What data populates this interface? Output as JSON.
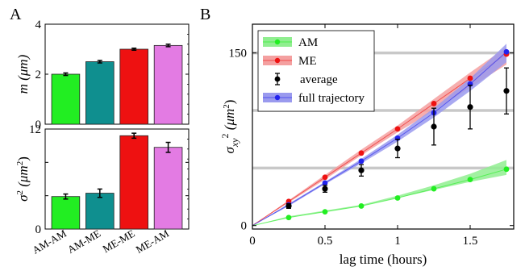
{
  "panel_labels": {
    "a": "A",
    "b": "B"
  },
  "chart_data": [
    {
      "id": "A-top",
      "type": "bar",
      "categories": [
        "AM-AM",
        "AM-ME",
        "ME-ME",
        "ME-AM"
      ],
      "values": [
        2.0,
        2.5,
        3.0,
        3.15
      ],
      "errors": [
        0.05,
        0.05,
        0.04,
        0.05
      ],
      "colors": [
        "#22ee22",
        "#0f8f8f",
        "#ee1111",
        "#e37be3"
      ],
      "ylabel_var": "m",
      "ylabel_unit": "(μm)",
      "ylim": [
        0,
        4
      ],
      "yticks": [
        0,
        2,
        4
      ],
      "show_x_labels": false
    },
    {
      "id": "A-bottom",
      "type": "bar",
      "categories": [
        "AM-AM",
        "AM-ME",
        "ME-ME",
        "ME-AM"
      ],
      "values": [
        3.9,
        4.3,
        11.2,
        9.8
      ],
      "errors": [
        0.3,
        0.5,
        0.3,
        0.6
      ],
      "colors": [
        "#22ee22",
        "#0f8f8f",
        "#ee1111",
        "#e37be3"
      ],
      "ylabel_var": "σ",
      "ylabel_sup": "2",
      "ylabel_unit": "(μm",
      "ylabel_unit_sup": "2",
      "ylabel_close": ")",
      "ylim": [
        0,
        12
      ],
      "yticks": [
        0,
        4,
        8,
        12
      ],
      "ytick_labels": [
        "0",
        "",
        "",
        "12"
      ],
      "show_x_labels": true
    },
    {
      "id": "B",
      "type": "line",
      "xlabel": "lag time (hours)",
      "ylabel_var": "σ",
      "ylabel_sub": "xy",
      "ylabel_sup": "2",
      "ylabel_unit": "(μm",
      "ylabel_unit_sup": "2",
      "ylabel_close": ")",
      "xlim": [
        0,
        1.8
      ],
      "ylim": [
        -3,
        175
      ],
      "xticks": [
        0,
        0.5,
        1,
        1.5
      ],
      "xtick_labels": [
        "0",
        "0.5",
        "1",
        "1.5"
      ],
      "yticks": [
        0,
        150
      ],
      "ytick_labels": [
        "0",
        "150"
      ],
      "gridlines_y": [
        50,
        100,
        150
      ],
      "legend_position": "top-left",
      "series": [
        {
          "name": "AM",
          "color": "#22ee22",
          "band": "#90ee90",
          "x": [
            0.25,
            0.5,
            0.75,
            1.0,
            1.25,
            1.5,
            1.75
          ],
          "y": [
            7,
            12,
            17,
            24,
            32,
            40,
            49
          ],
          "lower": [
            7,
            12,
            17,
            24,
            31,
            38,
            44
          ],
          "upper": [
            8,
            13,
            18,
            26,
            35,
            45,
            57
          ]
        },
        {
          "name": "ME",
          "color": "#ee1111",
          "band": "#f4a0a0",
          "x": [
            0.25,
            0.5,
            0.75,
            1.0,
            1.25,
            1.5,
            1.75
          ],
          "y": [
            21,
            42,
            63,
            84,
            106,
            128,
            149
          ],
          "lower": [
            20,
            40,
            61,
            81,
            100,
            120,
            140
          ],
          "upper": [
            22,
            44,
            66,
            87,
            110,
            133,
            155
          ]
        },
        {
          "name": "average",
          "color": "#000000",
          "type": "errorbar",
          "x": [
            0.25,
            0.5,
            0.75,
            1.0,
            1.25,
            1.5,
            1.75
          ],
          "y": [
            17,
            32,
            48,
            67,
            86,
            103,
            117
          ],
          "err": [
            2,
            3,
            5,
            8,
            16,
            19,
            20
          ]
        },
        {
          "name": "full trajectory",
          "color": "#2222ee",
          "band": "#9a9aee",
          "x": [
            0.25,
            0.5,
            0.75,
            1.0,
            1.25,
            1.5,
            1.75
          ],
          "y": [
            18,
            37,
            56,
            76,
            98,
            123,
            151
          ],
          "lower": [
            17,
            36,
            54,
            73,
            94,
            117,
            142
          ],
          "upper": [
            19,
            38,
            58,
            79,
            102,
            128,
            158
          ]
        }
      ]
    }
  ]
}
